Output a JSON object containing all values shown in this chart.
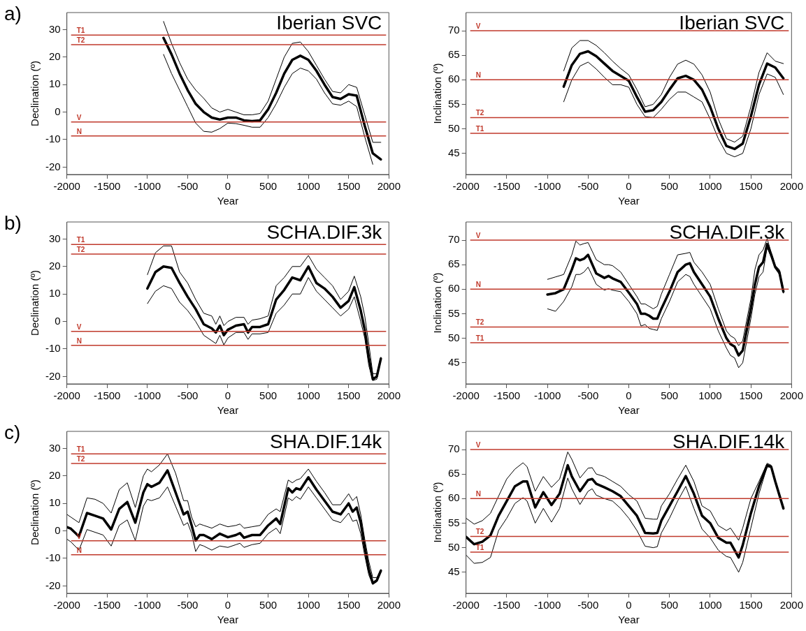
{
  "chart_data": [
    {
      "type": "line",
      "title": "Iberian SVC",
      "xlabel": "Year",
      "ylabel": "Declination (º)",
      "annotations": [
        "a)"
      ],
      "xlim": [
        -2000,
        2000
      ],
      "xticks": [
        -2000,
        -1500,
        -1000,
        -500,
        0,
        500,
        1000,
        1500,
        2000
      ],
      "ylim": [
        -22.7,
        36.2
      ],
      "yticks": [
        -20,
        -10,
        0,
        10,
        20,
        30
      ],
      "grid": false,
      "legend": false,
      "marker": "none",
      "ref_lines": [
        {
          "axis": "y",
          "value": 28,
          "label": "T1",
          "color": "#c0392b"
        },
        {
          "axis": "y",
          "value": 24.5,
          "label": "T2",
          "color": "#c0392b"
        },
        {
          "axis": "y",
          "value": -3.6,
          "label": "V",
          "color": "#c0392b"
        },
        {
          "axis": "y",
          "value": -8.7,
          "label": "N",
          "color": "#c0392b"
        }
      ],
      "x": [
        -800,
        -700,
        -600,
        -500,
        -400,
        -300,
        -200,
        -100,
        0,
        100,
        200,
        300,
        400,
        500,
        600,
        700,
        800,
        900,
        1000,
        1100,
        1200,
        1300,
        1400,
        1500,
        1600,
        1700,
        1800,
        1900
      ],
      "series": [
        {
          "color": "#000000",
          "values": [
            27,
            21,
            14,
            8,
            3,
            0,
            -2,
            -2.7,
            -2,
            -2,
            -3,
            -3.3,
            -3,
            1,
            7,
            14,
            19,
            20.5,
            19,
            15,
            10,
            5.5,
            4.8,
            6.5,
            6,
            -5,
            -15,
            -17.2
          ]
        },
        {
          "color": "#000000",
          "values": [
            33,
            25,
            18,
            12,
            8,
            5,
            1.5,
            0,
            1,
            0,
            -1,
            -1,
            -0.5,
            4,
            12,
            20,
            25,
            25.5,
            22,
            17,
            12,
            7.5,
            7,
            10,
            9,
            -1,
            -11,
            -11
          ]
        },
        {
          "color": "#000000",
          "values": [
            21,
            14,
            8,
            2,
            -4,
            -7,
            -7.3,
            -6,
            -4,
            -4.2,
            -4.8,
            -5.5,
            -5.5,
            -2,
            3,
            9,
            14,
            16,
            15,
            12,
            7,
            3,
            2.5,
            4,
            2,
            -9,
            -19,
            null
          ]
        }
      ]
    },
    {
      "type": "line",
      "title": "Iberian SVC",
      "xlabel": "Year",
      "ylabel": "Inclination (º)",
      "xlim": [
        -2000,
        2000
      ],
      "xticks": [
        -2000,
        -1500,
        -1000,
        -500,
        0,
        500,
        1000,
        1500,
        2000
      ],
      "ylim": [
        40.7,
        73.7
      ],
      "yticks": [
        45,
        50,
        55,
        60,
        65,
        70
      ],
      "grid": false,
      "legend": false,
      "marker": "none",
      "ref_lines": [
        {
          "axis": "y",
          "value": 70,
          "label": "V",
          "color": "#c0392b"
        },
        {
          "axis": "y",
          "value": 60,
          "label": "N",
          "color": "#c0392b"
        },
        {
          "axis": "y",
          "value": 52.3,
          "label": "T2",
          "color": "#c0392b"
        },
        {
          "axis": "y",
          "value": 49.1,
          "label": "T1",
          "color": "#c0392b"
        }
      ],
      "x": [
        -800,
        -700,
        -600,
        -500,
        -400,
        -300,
        -200,
        -100,
        0,
        100,
        200,
        300,
        400,
        500,
        600,
        700,
        800,
        900,
        1000,
        1100,
        1200,
        1300,
        1400,
        1500,
        1600,
        1700,
        1800,
        1900
      ],
      "series": [
        {
          "color": "#000000",
          "values": [
            58.6,
            63,
            65.3,
            65.8,
            64.8,
            63.3,
            61.8,
            60.8,
            59.8,
            56.5,
            53.5,
            53.8,
            55.5,
            58,
            60.3,
            60.8,
            60,
            58,
            54.5,
            50,
            46.5,
            45.9,
            47,
            52.5,
            59,
            63.3,
            62.5,
            60.3
          ]
        },
        {
          "color": "#000000",
          "values": [
            61.8,
            66.5,
            68,
            68,
            67,
            65.5,
            63.8,
            62.3,
            61,
            58,
            54.5,
            55,
            57,
            60.5,
            63.2,
            64,
            63.2,
            61,
            57.5,
            52,
            48,
            47.3,
            48.5,
            54.5,
            61.5,
            65.5,
            63.8,
            63.3
          ]
        },
        {
          "color": "#000000",
          "values": [
            55.5,
            60,
            62.8,
            63.6,
            62.2,
            60.5,
            59,
            59,
            58.5,
            55,
            52.5,
            52.3,
            54,
            56,
            57.5,
            57.5,
            56.5,
            55.5,
            52,
            48,
            45,
            44.3,
            45,
            50,
            57,
            61.2,
            60.5,
            57
          ]
        }
      ]
    },
    {
      "type": "line",
      "title": "SCHA.DIF.3k",
      "xlabel": "Year",
      "ylabel": "Declination (º)",
      "annotations": [
        "b)"
      ],
      "xlim": [
        -2000,
        2000
      ],
      "xticks": [
        -2000,
        -1500,
        -1000,
        -500,
        0,
        500,
        1000,
        1500,
        2000
      ],
      "ylim": [
        -22.7,
        36.2
      ],
      "yticks": [
        -20,
        -10,
        0,
        10,
        20,
        30
      ],
      "grid": false,
      "legend": false,
      "marker": "none",
      "ref_lines": [
        {
          "axis": "y",
          "value": 28,
          "label": "T1",
          "color": "#c0392b"
        },
        {
          "axis": "y",
          "value": 24.5,
          "label": "T2",
          "color": "#c0392b"
        },
        {
          "axis": "y",
          "value": -3.6,
          "label": "V",
          "color": "#c0392b"
        },
        {
          "axis": "y",
          "value": -8.7,
          "label": "N",
          "color": "#c0392b"
        }
      ],
      "x": [
        -1000,
        -900,
        -800,
        -700,
        -600,
        -500,
        -400,
        -300,
        -200,
        -150,
        -100,
        -50,
        0,
        100,
        200,
        250,
        300,
        400,
        500,
        600,
        700,
        800,
        900,
        1000,
        1100,
        1200,
        1300,
        1400,
        1500,
        1570,
        1650,
        1700,
        1750,
        1800,
        1850,
        1900
      ],
      "series": [
        {
          "color": "#000000",
          "values": [
            12,
            18,
            20,
            19.5,
            14,
            9,
            4.5,
            -1,
            -2.5,
            -4,
            -1.5,
            -5,
            -3,
            -1.5,
            -1,
            -4,
            -2,
            -2,
            -1,
            8,
            11.5,
            16,
            15,
            20,
            14,
            12,
            9,
            5,
            7.5,
            12.5,
            4,
            -3,
            -13,
            -21,
            -20,
            -13.5
          ]
        },
        {
          "color": "#000000",
          "values": [
            17,
            25,
            27.5,
            27.5,
            18,
            14,
            8,
            3,
            2,
            -1,
            2,
            -1.5,
            0,
            1.5,
            1.5,
            -1,
            0.5,
            1,
            2,
            13,
            16,
            20,
            20,
            24,
            19,
            16,
            13,
            8,
            11,
            16.5,
            9,
            2,
            -8,
            -19,
            -19,
            -13
          ]
        },
        {
          "color": "#000000",
          "values": [
            6.5,
            11,
            13,
            12,
            7,
            4,
            0,
            -5,
            -7,
            -8,
            -5,
            -8.5,
            -6,
            -4,
            -4,
            -6.5,
            -4.5,
            -4.5,
            -4,
            3,
            6,
            10,
            10,
            16,
            11,
            8,
            5,
            2,
            4.5,
            9,
            0,
            -6,
            -16,
            -21.5,
            -21,
            -14
          ]
        }
      ]
    },
    {
      "type": "line",
      "title": "SCHA.DIF.3k",
      "xlabel": "Year",
      "ylabel": "Inclination (º)",
      "xlim": [
        -2000,
        2000
      ],
      "xticks": [
        -2000,
        -1500,
        -1000,
        -500,
        0,
        500,
        1000,
        1500,
        2000
      ],
      "ylim": [
        40.7,
        73.7
      ],
      "yticks": [
        45,
        50,
        55,
        60,
        65,
        70
      ],
      "grid": false,
      "legend": false,
      "marker": "none",
      "ref_lines": [
        {
          "axis": "y",
          "value": 70,
          "label": "V",
          "color": "#c0392b"
        },
        {
          "axis": "y",
          "value": 60,
          "label": "N",
          "color": "#c0392b"
        },
        {
          "axis": "y",
          "value": 52.3,
          "label": "T2",
          "color": "#c0392b"
        },
        {
          "axis": "y",
          "value": 49.1,
          "label": "T1",
          "color": "#c0392b"
        }
      ],
      "x": [
        -1000,
        -900,
        -800,
        -700,
        -650,
        -600,
        -550,
        -500,
        -400,
        -300,
        -250,
        -200,
        -100,
        0,
        100,
        150,
        200,
        250,
        300,
        350,
        400,
        500,
        600,
        700,
        750,
        800,
        900,
        1000,
        1100,
        1200,
        1250,
        1300,
        1350,
        1400,
        1500,
        1550,
        1600,
        1650,
        1700,
        1750,
        1800,
        1850,
        1900
      ],
      "series": [
        {
          "color": "#000000",
          "values": [
            58.9,
            59.2,
            60,
            64,
            66.3,
            65.9,
            66.2,
            67,
            63.2,
            62.3,
            62.7,
            62.2,
            61.5,
            59.3,
            57,
            55,
            55,
            54.6,
            54,
            54,
            56,
            59.5,
            63.5,
            65,
            65.3,
            63.5,
            61,
            58.5,
            54,
            50,
            48.8,
            48.3,
            46.5,
            47.5,
            56,
            61,
            64.5,
            65.5,
            69.2,
            67,
            64.5,
            63.5,
            59.5
          ]
        },
        {
          "color": "#000000",
          "values": [
            62,
            62.5,
            63,
            67,
            69.8,
            69,
            69.3,
            69.5,
            66,
            65,
            65,
            64.8,
            63.5,
            61,
            58.5,
            57,
            57,
            56.5,
            56,
            56.5,
            59,
            63,
            67,
            67.3,
            67.5,
            65.5,
            63.5,
            61,
            56,
            51.5,
            50.5,
            50,
            48.5,
            49.5,
            58,
            64,
            67,
            68,
            70.3,
            67.5,
            64.8,
            64,
            60
          ]
        },
        {
          "color": "#000000",
          "values": [
            56,
            55.5,
            57.5,
            60.5,
            63,
            63,
            63.5,
            64.5,
            61,
            59.8,
            60.1,
            59.8,
            59.5,
            57.5,
            55,
            52.5,
            52.8,
            52,
            51.8,
            51.6,
            54,
            57.5,
            61.5,
            63,
            62.6,
            61,
            58.5,
            56,
            51.5,
            48,
            46.5,
            46,
            44,
            45,
            54,
            59,
            62.5,
            63.5,
            68.5,
            66.5,
            64.2,
            63,
            59.2
          ]
        }
      ]
    },
    {
      "type": "line",
      "title": "SHA.DIF.14k",
      "xlabel": "Year",
      "ylabel": "Declination (º)",
      "annotations": [
        "c)"
      ],
      "xlim": [
        -2000,
        2000
      ],
      "xticks": [
        -2000,
        -1500,
        -1000,
        -500,
        0,
        500,
        1000,
        1500,
        2000
      ],
      "ylim": [
        -22.7,
        36.2
      ],
      "yticks": [
        -20,
        -10,
        0,
        10,
        20,
        30
      ],
      "grid": false,
      "legend": false,
      "marker": "none",
      "ref_lines": [
        {
          "axis": "y",
          "value": 28,
          "label": "T1",
          "color": "#c0392b"
        },
        {
          "axis": "y",
          "value": 24.5,
          "label": "T2",
          "color": "#c0392b"
        },
        {
          "axis": "y",
          "value": -3.6,
          "label": "V",
          "color": "#c0392b"
        },
        {
          "axis": "y",
          "value": -8.7,
          "label": "N",
          "color": "#c0392b"
        }
      ],
      "x": [
        -2000,
        -1950,
        -1850,
        -1750,
        -1650,
        -1550,
        -1450,
        -1350,
        -1250,
        -1150,
        -1050,
        -1000,
        -950,
        -850,
        -750,
        -650,
        -550,
        -500,
        -450,
        -400,
        -350,
        -300,
        -200,
        -100,
        0,
        100,
        150,
        200,
        300,
        400,
        500,
        600,
        650,
        750,
        800,
        850,
        900,
        1000,
        1100,
        1200,
        1300,
        1400,
        1500,
        1550,
        1600,
        1650,
        1700,
        1750,
        1800,
        1850,
        1900
      ],
      "series": [
        {
          "color": "#000000",
          "values": [
            1.4,
            0.8,
            -2,
            6.5,
            5.5,
            4.5,
            0.5,
            8,
            10.5,
            3,
            14,
            17,
            16,
            17.5,
            22,
            14,
            6,
            7,
            2,
            -3.5,
            -1.5,
            -1.5,
            -3,
            -1,
            -2.3,
            -1.5,
            -0.8,
            -2.5,
            -1.5,
            -1.5,
            2,
            4.5,
            2.5,
            15.5,
            14,
            15.5,
            15,
            19.5,
            15,
            11,
            7,
            6,
            10,
            7,
            8.5,
            3,
            -6,
            -14,
            -19,
            -18,
            -14.5
          ]
        },
        {
          "color": "#000000",
          "values": [
            6,
            5,
            3,
            12,
            11.5,
            10,
            6.5,
            15,
            17.5,
            8.5,
            20,
            22.5,
            21.5,
            24,
            28,
            21,
            11,
            11,
            5,
            1.5,
            2.5,
            2,
            1,
            2.5,
            1.5,
            2,
            2.5,
            1,
            1.5,
            2,
            6,
            8,
            7,
            18.5,
            17.5,
            18.5,
            19,
            22.5,
            18,
            14,
            9.5,
            9.5,
            13.5,
            11,
            12.5,
            6,
            -3,
            -11,
            -17,
            -17,
            -14
          ]
        },
        {
          "color": "#000000",
          "values": [
            -3,
            -4,
            -7,
            0.5,
            -0.5,
            -1.5,
            -5.5,
            2,
            4,
            -3.5,
            9,
            11.5,
            11,
            12,
            16,
            9,
            2,
            3,
            -1,
            -7.5,
            -5,
            -5.5,
            -7,
            -5.5,
            -6,
            -5,
            -4.5,
            -6,
            -5,
            -4.5,
            -1,
            1,
            -1,
            12,
            11,
            12.5,
            11.5,
            16,
            12,
            8,
            4,
            3,
            6.5,
            3.5,
            4,
            -1,
            -9,
            -16,
            -19.5,
            -18.5,
            -14.5
          ]
        }
      ]
    },
    {
      "type": "line",
      "title": "SHA.DIF.14k",
      "xlabel": "Year",
      "ylabel": "Inclination (º)",
      "xlim": [
        -2000,
        2000
      ],
      "xticks": [
        -2000,
        -1500,
        -1000,
        -500,
        0,
        500,
        1000,
        1500,
        2000
      ],
      "ylim": [
        40.7,
        73.7
      ],
      "yticks": [
        45,
        50,
        55,
        60,
        65,
        70
      ],
      "grid": false,
      "legend": false,
      "marker": "none",
      "ref_lines": [
        {
          "axis": "y",
          "value": 70,
          "label": "V",
          "color": "#c0392b"
        },
        {
          "axis": "y",
          "value": 60,
          "label": "N",
          "color": "#c0392b"
        },
        {
          "axis": "y",
          "value": 52.3,
          "label": "T2",
          "color": "#c0392b"
        },
        {
          "axis": "y",
          "value": 49.1,
          "label": "T1",
          "color": "#c0392b"
        }
      ],
      "x": [
        -2000,
        -1900,
        -1800,
        -1700,
        -1600,
        -1500,
        -1400,
        -1300,
        -1250,
        -1150,
        -1050,
        -950,
        -850,
        -750,
        -700,
        -600,
        -500,
        -450,
        -400,
        -300,
        -200,
        -100,
        0,
        100,
        200,
        300,
        350,
        400,
        500,
        600,
        700,
        800,
        900,
        1000,
        1100,
        1200,
        1250,
        1350,
        1400,
        1500,
        1600,
        1700,
        1750,
        1800,
        1900
      ],
      "series": [
        {
          "color": "#000000",
          "values": [
            52.2,
            50.7,
            51.2,
            52.5,
            56.5,
            59.5,
            62.5,
            63.5,
            63.5,
            58.2,
            61.3,
            58.7,
            61,
            66.8,
            64.5,
            61.5,
            63.8,
            64,
            63,
            62.3,
            61.5,
            60.5,
            58.5,
            56.5,
            53,
            52.9,
            53,
            55.5,
            58.5,
            61.5,
            64.6,
            61,
            56.5,
            55,
            52,
            51,
            51,
            48,
            50.5,
            57,
            62.5,
            66.8,
            66.5,
            63.5,
            58
          ]
        },
        {
          "color": "#000000",
          "values": [
            56,
            54.8,
            55.5,
            57,
            60.5,
            64,
            66,
            67.3,
            66.5,
            61.5,
            64.5,
            62.3,
            64,
            69.5,
            68,
            64.2,
            66.2,
            66.3,
            65,
            64.5,
            63.5,
            62.5,
            60.8,
            59.5,
            56,
            55.8,
            55.8,
            58.5,
            61,
            64,
            66.8,
            63.5,
            58.5,
            57.5,
            54.5,
            53.5,
            54,
            51.5,
            54,
            60,
            63.5,
            67.2,
            66.8,
            63.6,
            58.2
          ]
        },
        {
          "color": "#000000",
          "values": [
            48.5,
            46.8,
            47,
            48,
            53.5,
            56,
            59,
            60.2,
            59.5,
            55,
            58,
            55.2,
            58,
            64.2,
            62,
            58.8,
            61.5,
            62,
            60.7,
            60,
            59.5,
            58,
            56,
            53.5,
            50.3,
            50,
            50.2,
            53,
            56,
            59.5,
            62.5,
            58,
            53.8,
            52,
            49.5,
            48.2,
            48,
            45,
            47,
            54,
            61,
            66.5,
            66.3,
            63.4,
            57.8
          ]
        }
      ]
    }
  ]
}
